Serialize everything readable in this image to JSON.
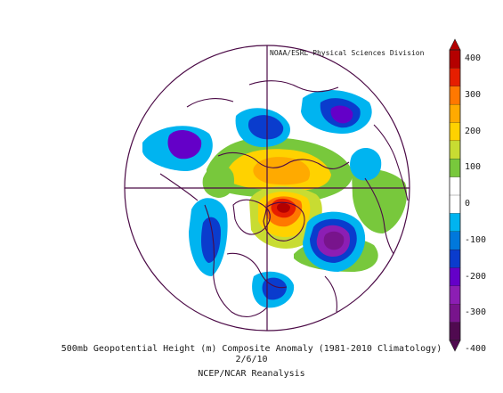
{
  "credit": "NOAA/ESRL Physical Sciences Division",
  "caption": {
    "title": "500mb Geopotential Height (m) Composite Anomaly (1981-2010 Climatology)",
    "date": "2/6/10",
    "source": "NCEP/NCAR Reanalysis"
  },
  "legend": {
    "ticks": [
      "400",
      "300",
      "200",
      "100",
      "0",
      "-100",
      "-200",
      "-300",
      "-400"
    ],
    "colors": {
      "p400": "#b40000",
      "p350": "#e61e00",
      "p300": "#ff7800",
      "p250": "#ffaa00",
      "p200": "#ffd200",
      "p150": "#c8dc32",
      "p100": "#78c83c",
      "p50": "#ffffff",
      "n50": "#ffffff",
      "n100": "#00b4f0",
      "n150": "#0078dc",
      "n200": "#0a3ccd",
      "n250": "#6400c8",
      "n300": "#8c1eb4",
      "n350": "#78148c",
      "n400": "#500a50"
    }
  },
  "map": {
    "projection": "north-polar-stereographic",
    "coast_color": "#4b0a46"
  }
}
